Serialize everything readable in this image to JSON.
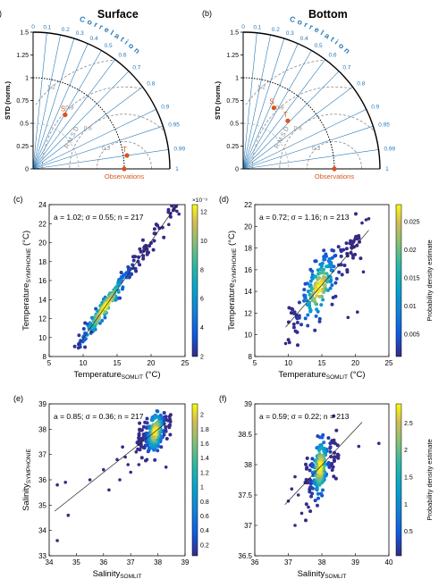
{
  "chart_data": [
    {
      "id": "a",
      "type": "taylor",
      "panel_label": "(a)",
      "title": "Surface",
      "ylabel": "STD (norm.)",
      "corr_title": "Correlation",
      "obs_label": "Observations",
      "rmsd_label": "RMSD",
      "std_ticks": [
        "0",
        "0.25",
        "0.5",
        "0.75",
        "1",
        "1.25",
        "1.5"
      ],
      "corr_ticks": [
        "0",
        "0.1",
        "0.2",
        "0.3",
        "0.4",
        "0.5",
        "0.6",
        "0.7",
        "0.8",
        "0.9",
        "0.95",
        "0.99",
        "1"
      ],
      "rmsd_ticks": [
        "0.3",
        "0.6",
        "0.9",
        "1.2"
      ],
      "points": [
        {
          "label": "S",
          "std": 0.69,
          "corr": 0.51
        },
        {
          "label": "T",
          "std": 1.04,
          "corr": 0.99
        }
      ],
      "colors": {
        "axis": "#000000",
        "corr": "#2a7ab8",
        "rmsd": "#8a8a8a",
        "point": "#d9531e"
      }
    },
    {
      "id": "b",
      "type": "taylor",
      "panel_label": "(b)",
      "title": "Bottom",
      "ylabel": "STD (norm.)",
      "corr_title": "Correlation",
      "obs_label": "Observations",
      "rmsd_label": "RMSD",
      "std_ticks": [
        "0",
        "0.25",
        "0.5",
        "0.75",
        "1",
        "1.25",
        "1.5"
      ],
      "corr_ticks": [
        "0",
        "0.1",
        "0.2",
        "0.3",
        "0.4",
        "0.5",
        "0.6",
        "0.7",
        "0.8",
        "0.9",
        "0.95",
        "0.99",
        "1"
      ],
      "rmsd_ticks": [
        "0.3",
        "0.6",
        "0.9",
        "1.2"
      ],
      "points": [
        {
          "label": "S",
          "std": 0.75,
          "corr": 0.45
        },
        {
          "label": "T",
          "std": 0.72,
          "corr": 0.68
        }
      ],
      "colors": {
        "axis": "#000000",
        "corr": "#2a7ab8",
        "rmsd": "#8a8a8a",
        "point": "#d9531e"
      }
    },
    {
      "id": "c",
      "type": "scatter",
      "panel_label": "(c)",
      "annotation": "a = 1.02; σ = 0.55; n = 217",
      "xlabel": "Temperature",
      "xlabel_sub": "SOMLIT",
      "xlabel_unit": " (°C)",
      "ylabel": "Temperature",
      "ylabel_sub": "SYMPHONIE",
      "ylabel_unit": " (°C)",
      "xlim": [
        5,
        25
      ],
      "ylim": [
        8,
        24
      ],
      "xticks": [
        "5",
        "10",
        "15",
        "20",
        "25"
      ],
      "yticks": [
        "8",
        "10",
        "12",
        "14",
        "16",
        "18",
        "20",
        "22",
        "24"
      ],
      "fit": {
        "slope": 1.02,
        "intercept": -0.28,
        "x": [
          9.2,
          24.3
        ]
      },
      "colorbar": {
        "min": 2,
        "max": 12.5,
        "ticks": [
          "2",
          "4",
          "6",
          "8",
          "10",
          "12"
        ],
        "exponent": "×10⁻³",
        "label": ""
      },
      "cloud": {
        "x": [
          9,
          24
        ],
        "sigma": 0.55,
        "n": 217,
        "peak_x": 13.2
      },
      "outliers": [
        [
          9.3,
          8.9
        ],
        [
          11.2,
          10.6
        ],
        [
          22.6,
          21.9
        ],
        [
          24.1,
          23.0
        ],
        [
          23.8,
          23.3
        ]
      ]
    },
    {
      "id": "d",
      "type": "scatter",
      "panel_label": "(d)",
      "annotation": "a = 0.72; σ = 1.16; n = 213",
      "xlabel": "Temperature",
      "xlabel_sub": "SOMLIT",
      "xlabel_unit": " (°C)",
      "ylabel": "Temperature",
      "ylabel_sub": "SYMPHONIE",
      "ylabel_unit": " (°C)",
      "xlim": [
        5,
        25
      ],
      "ylim": [
        8,
        22
      ],
      "xticks": [
        "5",
        "10",
        "15",
        "20",
        "25"
      ],
      "yticks": [
        "8",
        "10",
        "12",
        "14",
        "16",
        "18",
        "20",
        "22"
      ],
      "fit": {
        "slope": 0.72,
        "intercept": 3.8,
        "x": [
          9.6,
          22.0
        ]
      },
      "colorbar": {
        "min": 0.001,
        "max": 0.028,
        "ticks": [
          "0.005",
          "0.01",
          "0.015",
          "0.02",
          "0.025"
        ],
        "exponent": "",
        "label": "Probability density estimate"
      },
      "cloud": {
        "x": [
          10,
          21
        ],
        "sigma": 1.16,
        "n": 213,
        "peak_x": 14.6
      },
      "outliers": [
        [
          9.6,
          9.2
        ],
        [
          21.6,
          20.6
        ],
        [
          21.0,
          20.3
        ],
        [
          22.0,
          20.7
        ],
        [
          20.3,
          12.1
        ],
        [
          21.2,
          15.8
        ],
        [
          18.9,
          11.6
        ]
      ]
    },
    {
      "id": "e",
      "type": "scatter",
      "panel_label": "(e)",
      "annotation": "a = 0.85; σ = 0.36; n = 217",
      "xlabel": "Salinity",
      "xlabel_sub": "SOMLIT",
      "xlabel_unit": "",
      "ylabel": "Salinity",
      "ylabel_sub": "SYMPHONIE",
      "ylabel_unit": "",
      "xlim": [
        34,
        39
      ],
      "ylim": [
        33,
        39
      ],
      "xticks": [
        "34",
        "35",
        "36",
        "37",
        "38",
        "39"
      ],
      "yticks": [
        "33",
        "34",
        "35",
        "36",
        "37",
        "38",
        "39"
      ],
      "fit": {
        "slope": 0.85,
        "intercept": 5.69,
        "x": [
          34.2,
          38.3
        ]
      },
      "colorbar": {
        "min": 0.05,
        "max": 2.15,
        "ticks": [
          "0.2",
          "0.4",
          "0.6",
          "0.8",
          "1",
          "1.2",
          "1.4",
          "1.6",
          "1.8",
          "2"
        ],
        "exponent": "",
        "label": ""
      },
      "cloud": {
        "x": [
          37.2,
          38.5
        ],
        "sigma": 0.36,
        "n": 217,
        "peak_x": 37.9
      },
      "outliers": [
        [
          34.3,
          35.8
        ],
        [
          34.3,
          33.6
        ],
        [
          34.7,
          34.6
        ],
        [
          34.6,
          35.9
        ],
        [
          35.5,
          36.0
        ],
        [
          36.0,
          36.4
        ],
        [
          36.2,
          35.6
        ],
        [
          36.6,
          36.0
        ],
        [
          36.5,
          36.8
        ],
        [
          37.0,
          36.3
        ],
        [
          36.9,
          36.6
        ],
        [
          37.2,
          37.1
        ],
        [
          36.7,
          37.3
        ],
        [
          38.3,
          36.5
        ],
        [
          37.3,
          36.6
        ],
        [
          36.8,
          36.9
        ],
        [
          37.6,
          36.8
        ]
      ]
    },
    {
      "id": "f",
      "type": "scatter",
      "panel_label": "(f)",
      "annotation": "a = 0.59; σ = 0.22; n = 213",
      "xlabel": "Salinity",
      "xlabel_sub": "SOMLIT",
      "xlabel_unit": "",
      "ylabel": "",
      "ylabel_sub": "",
      "ylabel_unit": "",
      "xlim": [
        36,
        40
      ],
      "ylim": [
        36.5,
        39
      ],
      "xticks": [
        "36",
        "37",
        "38",
        "39",
        "40"
      ],
      "yticks": [
        "36.5",
        "37",
        "37.5",
        "38",
        "38.5",
        "39"
      ],
      "fit": {
        "slope": 0.59,
        "intercept": 15.57,
        "x": [
          36.9,
          39.2
        ]
      },
      "colorbar": {
        "min": 0.05,
        "max": 2.85,
        "ticks": [
          "0.5",
          "1",
          "1.5",
          "2",
          "2.5"
        ],
        "exponent": "",
        "label": "Probability density estimate"
      },
      "cloud": {
        "x": [
          37.5,
          38.5
        ],
        "sigma": 0.22,
        "n": 213,
        "peak_x": 37.95
      },
      "outliers": [
        [
          37.0,
          37.4
        ],
        [
          37.2,
          37.0
        ],
        [
          37.1,
          37.6
        ],
        [
          39.1,
          38.3
        ],
        [
          39.7,
          38.35
        ],
        [
          37.4,
          37.2
        ],
        [
          37.3,
          37.5
        ],
        [
          37.6,
          37.3
        ],
        [
          37.2,
          37.8
        ]
      ]
    }
  ]
}
